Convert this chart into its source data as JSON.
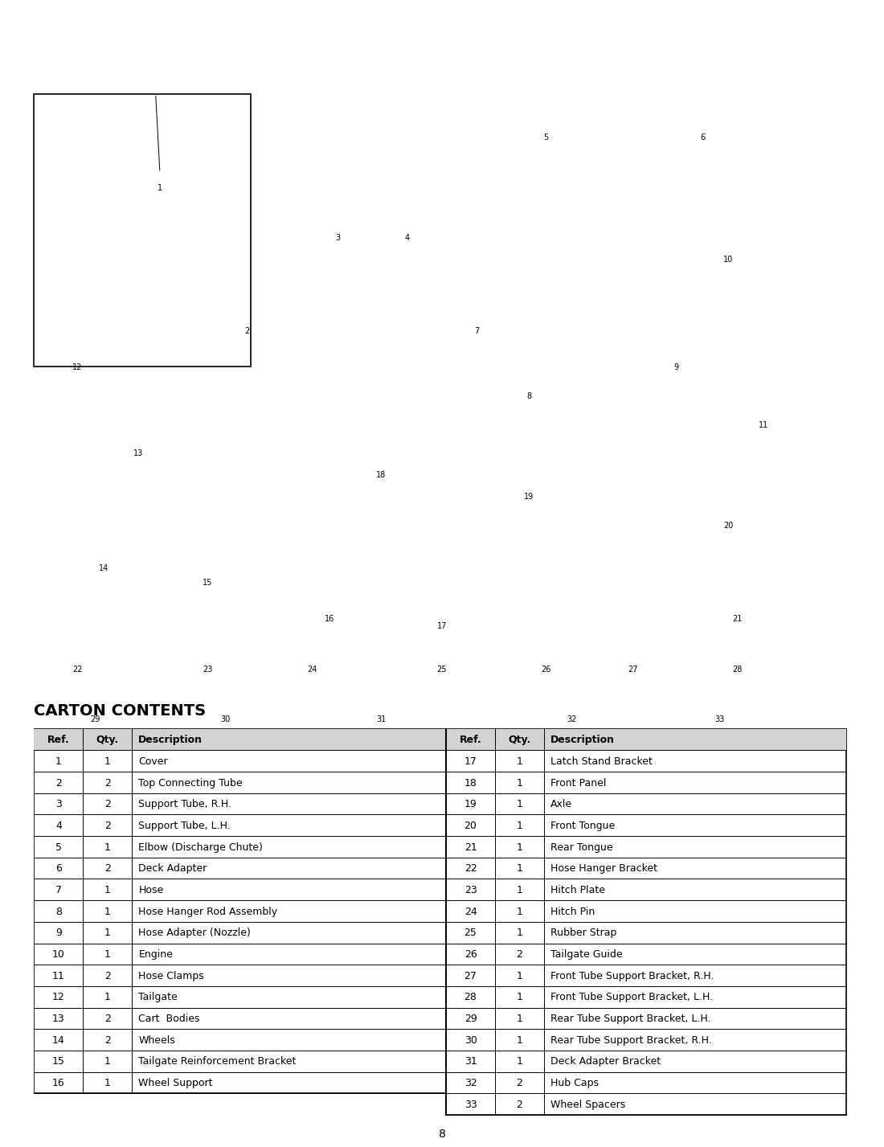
{
  "title": "CARTON CONTENTS",
  "page_number": "8",
  "bg_color": "#ffffff",
  "table_left": {
    "headers": [
      "Ref.",
      "Qty.",
      "Description"
    ],
    "rows": [
      [
        "1",
        "1",
        "Cover"
      ],
      [
        "2",
        "2",
        "Top Connecting Tube"
      ],
      [
        "3",
        "2",
        "Support Tube, R.H."
      ],
      [
        "4",
        "2",
        "Support Tube, L.H."
      ],
      [
        "5",
        "1",
        "Elbow (Discharge Chute)"
      ],
      [
        "6",
        "2",
        "Deck Adapter"
      ],
      [
        "7",
        "1",
        "Hose"
      ],
      [
        "8",
        "1",
        "Hose Hanger Rod Assembly"
      ],
      [
        "9",
        "1",
        "Hose Adapter (Nozzle)"
      ],
      [
        "10",
        "1",
        "Engine"
      ],
      [
        "11",
        "2",
        "Hose Clamps"
      ],
      [
        "12",
        "1",
        "Tailgate"
      ],
      [
        "13",
        "2",
        "Cart  Bodies"
      ],
      [
        "14",
        "2",
        "Wheels"
      ],
      [
        "15",
        "1",
        "Tailgate Reinforcement Bracket"
      ],
      [
        "16",
        "1",
        "Wheel Support"
      ]
    ]
  },
  "table_right": {
    "headers": [
      "Ref.",
      "Qty.",
      "Description"
    ],
    "rows": [
      [
        "17",
        "1",
        "Latch Stand Bracket"
      ],
      [
        "18",
        "1",
        "Front Panel"
      ],
      [
        "19",
        "1",
        "Axle"
      ],
      [
        "20",
        "1",
        "Front Tongue"
      ],
      [
        "21",
        "1",
        "Rear Tongue"
      ],
      [
        "22",
        "1",
        "Hose Hanger Bracket"
      ],
      [
        "23",
        "1",
        "Hitch Plate"
      ],
      [
        "24",
        "1",
        "Hitch Pin"
      ],
      [
        "25",
        "1",
        "Rubber Strap"
      ],
      [
        "26",
        "2",
        "Tailgate Guide"
      ],
      [
        "27",
        "1",
        "Front Tube Support Bracket, R.H."
      ],
      [
        "28",
        "1",
        "Front Tube Support Bracket, L.H."
      ],
      [
        "29",
        "1",
        "Rear Tube Support Bracket, L.H."
      ],
      [
        "30",
        "1",
        "Rear Tube Support Bracket, R.H."
      ],
      [
        "31",
        "1",
        "Deck Adapter Bracket"
      ],
      [
        "32",
        "2",
        "Hub Caps"
      ],
      [
        "33",
        "2",
        "Wheel Spacers"
      ]
    ]
  },
  "header_bg": "#d3d3d3",
  "outer_border_color": "#000000",
  "line_color": "#000000",
  "text_color": "#000000",
  "font_size_title": 14,
  "font_size_table": 9,
  "font_size_page": 10
}
